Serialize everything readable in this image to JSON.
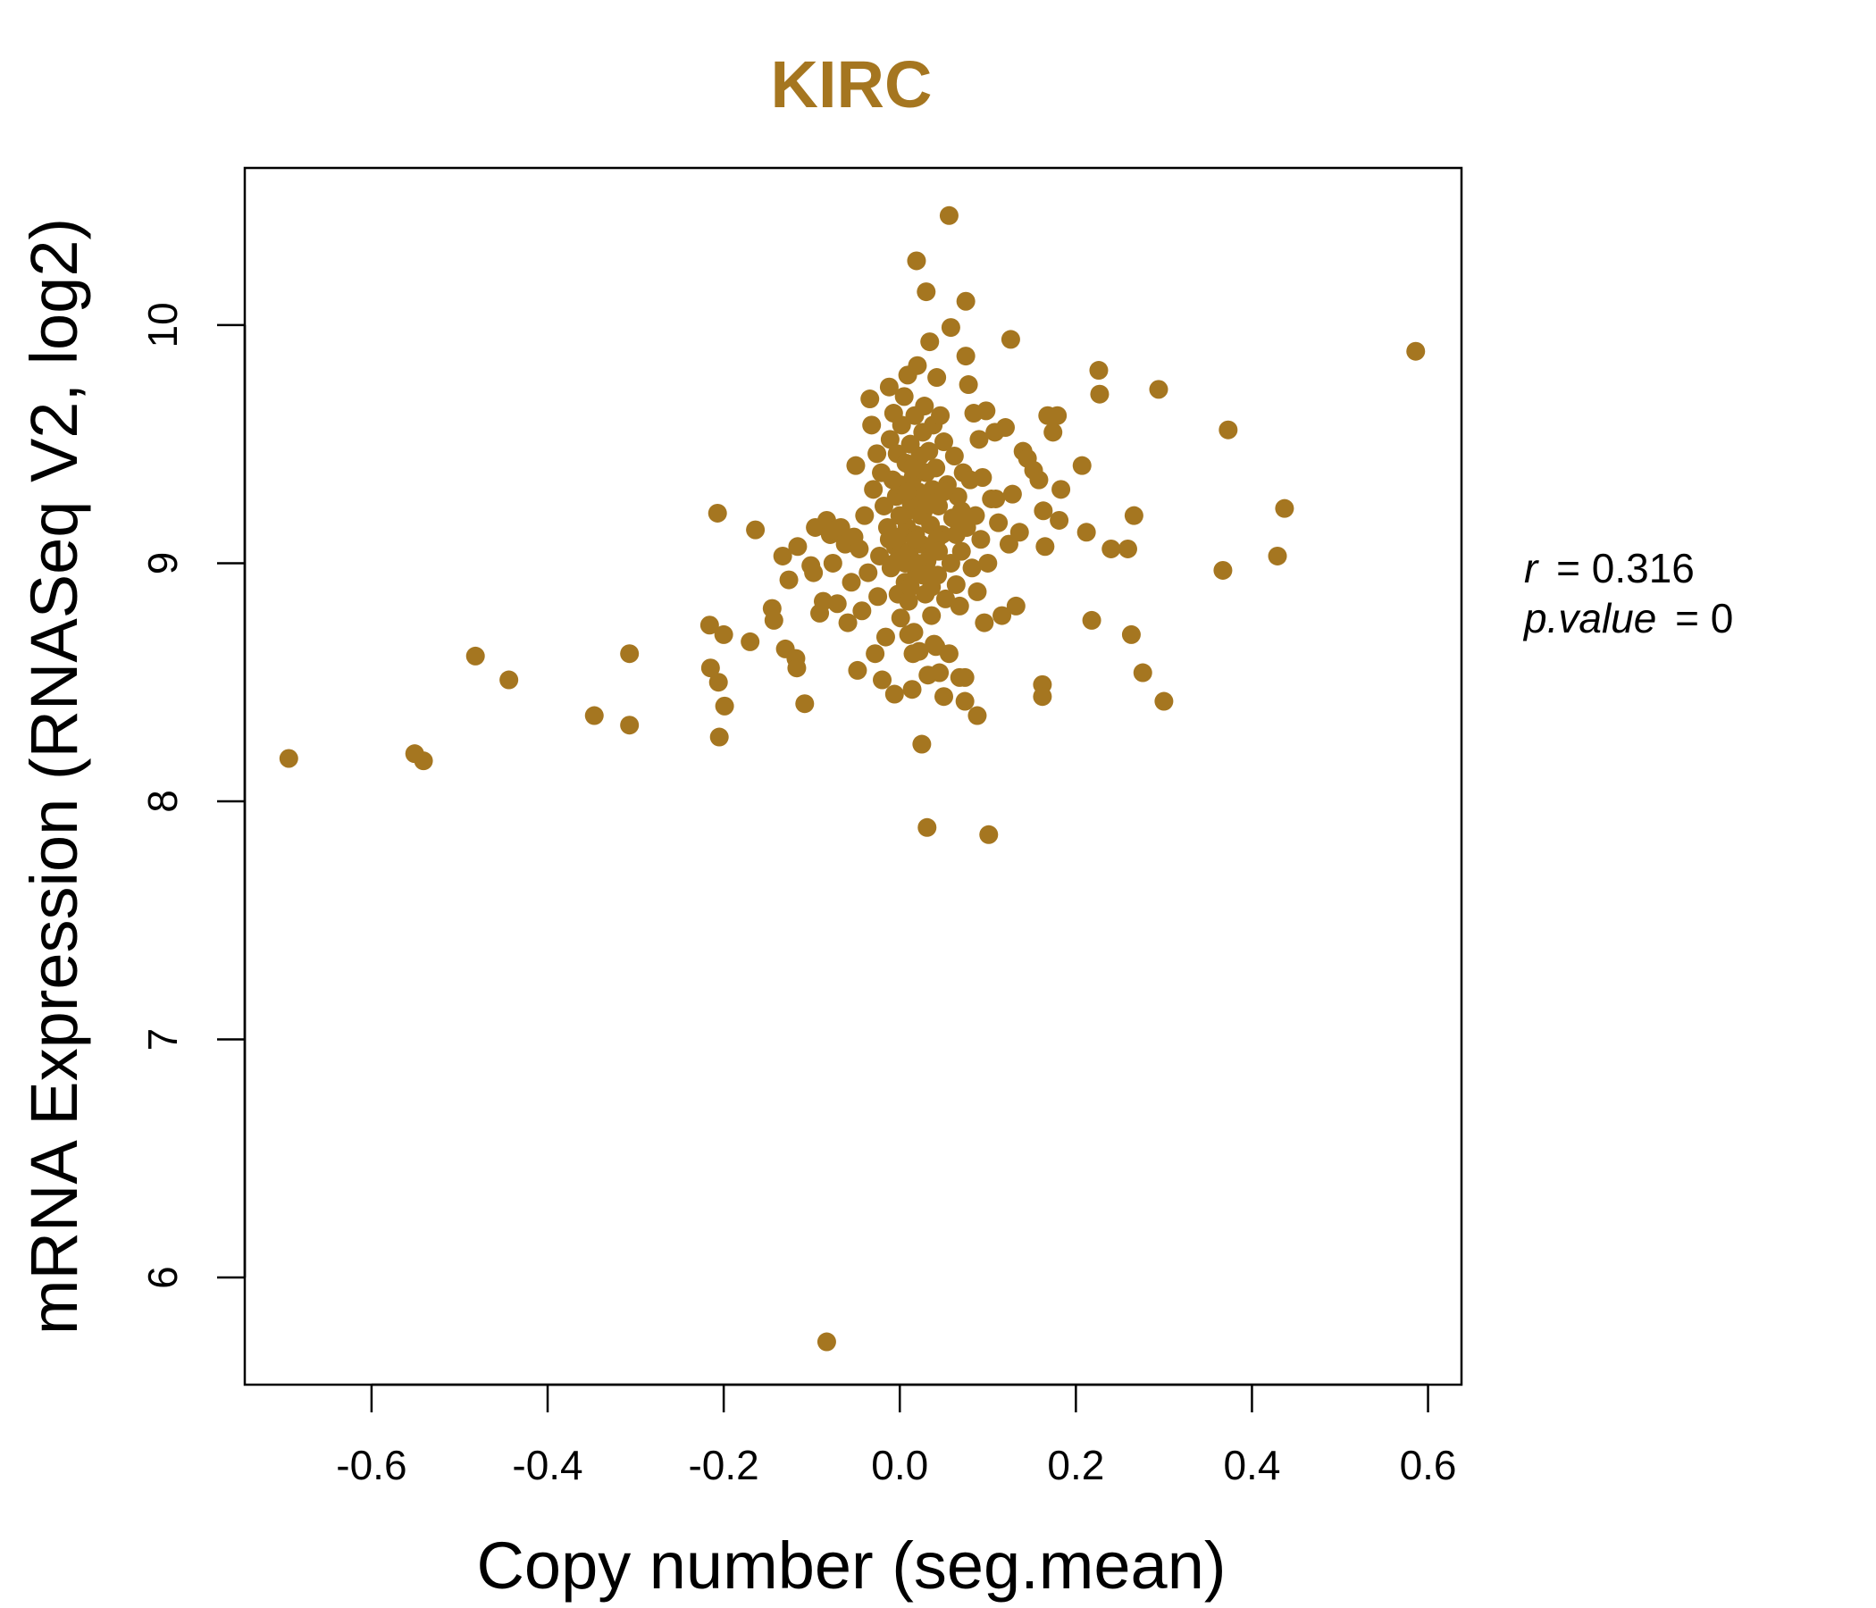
{
  "chart_data": {
    "type": "scatter",
    "title": "KIRC",
    "xlabel": "Copy number (seg.mean)",
    "ylabel": "mRNA Expression (RNASeq V2, log2)",
    "xlim": [
      -0.744,
      0.638
    ],
    "ylim": [
      5.55,
      10.66
    ],
    "x_ticks": [
      -0.6,
      -0.4,
      -0.2,
      0.0,
      0.2,
      0.4,
      0.6
    ],
    "x_tick_labels": [
      "-0.6",
      "-0.4",
      "-0.2",
      "0.0",
      "0.2",
      "0.4",
      "0.6"
    ],
    "y_ticks": [
      6,
      7,
      8,
      9,
      10
    ],
    "y_tick_labels": [
      "6",
      "7",
      "8",
      "9",
      "10"
    ],
    "grid": false,
    "point_color": "#A57620",
    "annotation": {
      "r_label": "r",
      "r_value": "= 0.316",
      "p_label": "p.value",
      "p_value": "= 0"
    },
    "points": [
      [
        -0.694,
        8.18
      ],
      [
        -0.551,
        8.2
      ],
      [
        -0.541,
        8.17
      ],
      [
        -0.482,
        8.61
      ],
      [
        -0.444,
        8.51
      ],
      [
        -0.347,
        8.36
      ],
      [
        -0.307,
        8.62
      ],
      [
        -0.307,
        8.32
      ],
      [
        -0.216,
        8.74
      ],
      [
        -0.215,
        8.56
      ],
      [
        -0.206,
        8.5
      ],
      [
        -0.205,
        8.27
      ],
      [
        -0.2,
        8.7
      ],
      [
        -0.199,
        8.4
      ],
      [
        -0.207,
        9.21
      ],
      [
        -0.17,
        8.67
      ],
      [
        -0.164,
        9.14
      ],
      [
        -0.145,
        8.81
      ],
      [
        -0.143,
        8.76
      ],
      [
        -0.133,
        9.03
      ],
      [
        -0.13,
        8.64
      ],
      [
        -0.126,
        8.93
      ],
      [
        -0.118,
        8.6
      ],
      [
        -0.117,
        8.56
      ],
      [
        -0.116,
        9.07
      ],
      [
        -0.108,
        8.41
      ],
      [
        -0.101,
        8.99
      ],
      [
        -0.098,
        8.96
      ],
      [
        -0.096,
        9.15
      ],
      [
        -0.091,
        8.79
      ],
      [
        -0.087,
        8.84
      ],
      [
        -0.083,
        9.18
      ],
      [
        -0.079,
        9.12
      ],
      [
        -0.076,
        9.0
      ],
      [
        -0.074,
        9.14
      ],
      [
        -0.071,
        8.83
      ],
      [
        -0.067,
        9.15
      ],
      [
        -0.062,
        9.08
      ],
      [
        -0.059,
        8.75
      ],
      [
        -0.055,
        8.92
      ],
      [
        -0.052,
        9.11
      ],
      [
        -0.05,
        9.41
      ],
      [
        -0.048,
        8.55
      ],
      [
        -0.046,
        9.06
      ],
      [
        -0.043,
        8.8
      ],
      [
        -0.04,
        9.2
      ],
      [
        -0.036,
        8.96
      ],
      [
        -0.034,
        9.69
      ],
      [
        -0.032,
        9.58
      ],
      [
        -0.03,
        9.31
      ],
      [
        -0.028,
        8.62
      ],
      [
        -0.026,
        9.46
      ],
      [
        -0.025,
        8.86
      ],
      [
        -0.023,
        9.03
      ],
      [
        -0.021,
        9.38
      ],
      [
        -0.02,
        8.51
      ],
      [
        -0.018,
        9.24
      ],
      [
        -0.016,
        8.69
      ],
      [
        -0.014,
        9.15
      ],
      [
        -0.012,
        9.74
      ],
      [
        -0.011,
        9.52
      ],
      [
        -0.01,
        8.98
      ],
      [
        -0.008,
        9.35
      ],
      [
        -0.007,
        9.63
      ],
      [
        -0.006,
        8.45
      ],
      [
        -0.005,
        9.07
      ],
      [
        -0.004,
        9.28
      ],
      [
        -0.003,
        9.46
      ],
      [
        -0.002,
        8.87
      ],
      [
        -0.001,
        9.11
      ],
      [
        0.0,
        9.33
      ],
      [
        0.001,
        8.77
      ],
      [
        0.002,
        9.58
      ],
      [
        0.003,
        9.02
      ],
      [
        0.004,
        9.2
      ],
      [
        0.005,
        9.7
      ],
      [
        0.006,
        8.92
      ],
      [
        0.007,
        9.42
      ],
      [
        0.008,
        9.15
      ],
      [
        0.009,
        9.79
      ],
      [
        0.01,
        8.84
      ],
      [
        0.011,
        9.05
      ],
      [
        0.012,
        9.5
      ],
      [
        0.013,
        9.25
      ],
      [
        0.014,
        8.47
      ],
      [
        0.015,
        9.36
      ],
      [
        0.016,
        8.71
      ],
      [
        0.017,
        9.62
      ],
      [
        0.018,
        9.12
      ],
      [
        0.019,
        8.96
      ],
      [
        0.02,
        9.83
      ],
      [
        0.021,
        9.3
      ],
      [
        0.022,
        8.63
      ],
      [
        0.023,
        9.45
      ],
      [
        0.024,
        9.08
      ],
      [
        0.025,
        8.24
      ],
      [
        0.026,
        9.55
      ],
      [
        0.027,
        9.22
      ],
      [
        0.028,
        9.66
      ],
      [
        0.029,
        8.87
      ],
      [
        0.03,
        9.38
      ],
      [
        0.031,
        9.01
      ],
      [
        0.032,
        8.53
      ],
      [
        0.033,
        9.47
      ],
      [
        0.034,
        9.93
      ],
      [
        0.035,
        9.16
      ],
      [
        0.036,
        8.78
      ],
      [
        0.037,
        9.31
      ],
      [
        0.038,
        9.58
      ],
      [
        0.039,
        8.66
      ],
      [
        0.04,
        9.06
      ],
      [
        0.041,
        9.4
      ],
      [
        0.042,
        9.78
      ],
      [
        0.043,
        8.95
      ],
      [
        0.044,
        9.24
      ],
      [
        0.045,
        8.54
      ],
      [
        0.046,
        9.62
      ],
      [
        0.048,
        9.12
      ],
      [
        0.05,
        9.51
      ],
      [
        0.052,
        8.85
      ],
      [
        0.054,
        9.33
      ],
      [
        0.056,
        8.62
      ],
      [
        0.058,
        9.99
      ],
      [
        0.06,
        9.19
      ],
      [
        0.062,
        9.45
      ],
      [
        0.064,
        8.91
      ],
      [
        0.066,
        9.28
      ],
      [
        0.068,
        8.82
      ],
      [
        0.07,
        9.05
      ],
      [
        0.072,
        9.38
      ],
      [
        0.074,
        8.52
      ],
      [
        0.076,
        9.15
      ],
      [
        0.078,
        9.75
      ],
      [
        0.08,
        9.35
      ],
      [
        0.082,
        8.98
      ],
      [
        0.084,
        9.63
      ],
      [
        0.086,
        9.2
      ],
      [
        0.088,
        8.88
      ],
      [
        0.09,
        9.52
      ],
      [
        0.092,
        9.1
      ],
      [
        0.094,
        9.36
      ],
      [
        0.096,
        8.75
      ],
      [
        0.098,
        9.64
      ],
      [
        0.1,
        9.0
      ],
      [
        0.104,
        9.27
      ],
      [
        0.108,
        9.55
      ],
      [
        0.112,
        9.17
      ],
      [
        0.116,
        8.78
      ],
      [
        0.12,
        9.57
      ],
      [
        0.124,
        9.08
      ],
      [
        0.128,
        9.29
      ],
      [
        0.132,
        8.82
      ],
      [
        0.136,
        9.13
      ],
      [
        0.14,
        9.47
      ],
      [
        0.145,
        9.44
      ],
      [
        0.152,
        9.39
      ],
      [
        0.158,
        9.35
      ],
      [
        0.163,
        9.22
      ],
      [
        0.165,
        9.07
      ],
      [
        0.168,
        9.62
      ],
      [
        0.174,
        9.55
      ],
      [
        0.179,
        9.62
      ],
      [
        0.183,
        9.31
      ],
      [
        0.181,
        9.18
      ],
      [
        0.162,
        8.49
      ],
      [
        0.162,
        8.44
      ],
      [
        0.207,
        9.41
      ],
      [
        0.212,
        9.13
      ],
      [
        0.218,
        8.76
      ],
      [
        0.226,
        9.81
      ],
      [
        0.227,
        9.71
      ],
      [
        0.24,
        9.06
      ],
      [
        0.259,
        9.06
      ],
      [
        0.263,
        8.7
      ],
      [
        0.266,
        9.2
      ],
      [
        0.276,
        8.54
      ],
      [
        0.294,
        9.73
      ],
      [
        0.3,
        8.42
      ],
      [
        0.367,
        8.97
      ],
      [
        0.373,
        9.56
      ],
      [
        0.429,
        9.03
      ],
      [
        0.437,
        9.23
      ],
      [
        0.586,
        9.89
      ],
      [
        0.109,
        9.27
      ],
      [
        0.056,
        10.46
      ],
      [
        0.019,
        10.27
      ],
      [
        0.03,
        10.14
      ],
      [
        0.075,
        10.1
      ],
      [
        0.126,
        9.94
      ],
      [
        0.075,
        9.87
      ],
      [
        0.01,
        8.7
      ],
      [
        0.015,
        8.62
      ],
      [
        0.041,
        8.65
      ],
      [
        0.05,
        8.44
      ],
      [
        0.074,
        8.42
      ],
      [
        0.068,
        8.52
      ],
      [
        0.088,
        8.36
      ],
      [
        0.031,
        7.89
      ],
      [
        0.101,
        7.86
      ],
      [
        -0.083,
        5.73
      ],
      [
        0.006,
        9.0
      ],
      [
        0.012,
        8.9
      ],
      [
        0.018,
        9.1
      ],
      [
        0.024,
        9.2
      ],
      [
        0.03,
        9.0
      ],
      [
        0.036,
        8.9
      ],
      [
        0.042,
        9.1
      ],
      [
        0.0,
        9.2
      ],
      [
        -0.006,
        9.0
      ],
      [
        -0.012,
        9.1
      ],
      [
        0.008,
        9.3
      ],
      [
        0.014,
        9.4
      ],
      [
        0.02,
        9.0
      ],
      [
        0.026,
        8.95
      ],
      [
        0.032,
        9.25
      ],
      [
        0.044,
        9.05
      ],
      [
        0.05,
        9.3
      ],
      [
        0.058,
        9.0
      ],
      [
        0.064,
        9.12
      ],
      [
        0.07,
        9.22
      ]
    ]
  }
}
